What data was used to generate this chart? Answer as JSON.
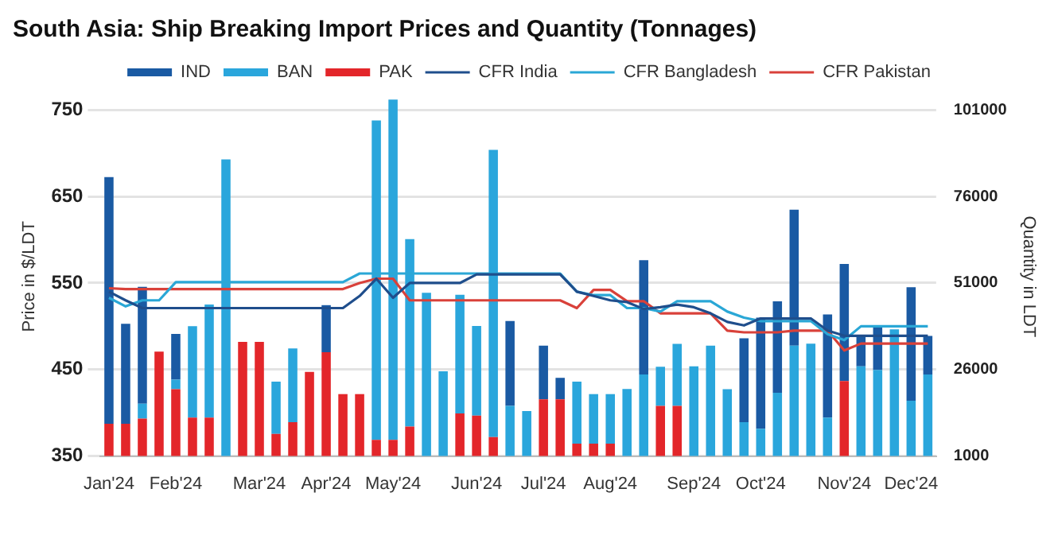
{
  "chart_data": {
    "type": "bar",
    "title": "South Asia: Ship Breaking Import Prices and Quantity (Tonnages)",
    "categories": [
      "Jan'24",
      null,
      null,
      null,
      "Feb'24",
      null,
      null,
      null,
      null,
      "Mar'24",
      null,
      null,
      null,
      "Apr'24",
      null,
      null,
      null,
      "May'24",
      null,
      null,
      null,
      null,
      "Jun'24",
      null,
      null,
      null,
      "Jul'24",
      null,
      null,
      null,
      "Aug'24",
      null,
      null,
      null,
      null,
      "Sep'24",
      null,
      null,
      null,
      "Oct'24",
      null,
      null,
      null,
      null,
      "Nov'24",
      null,
      null,
      null,
      "Dec'24",
      null
    ],
    "series": [
      {
        "name": "PAK",
        "color": "#e3262a",
        "axis": "y2",
        "values": [
          10300,
          10300,
          11800,
          31200,
          20300,
          12100,
          12100,
          null,
          34000,
          34000,
          7400,
          10800,
          25300,
          31000,
          18900,
          18900,
          5700,
          5700,
          9500,
          null,
          null,
          13300,
          12700,
          6500,
          null,
          null,
          17400,
          17400,
          4600,
          4600,
          4600,
          null,
          null,
          15500,
          15500,
          null,
          null,
          null,
          null,
          null,
          null,
          null,
          null,
          null,
          22700,
          null,
          null,
          null,
          null,
          null
        ]
      },
      {
        "name": "BAN",
        "color": "#2aa6dc",
        "axis": "y2",
        "values": [
          null,
          null,
          4300,
          null,
          2800,
          26400,
          32700,
          86700,
          null,
          null,
          15100,
          21300,
          null,
          null,
          null,
          null,
          92300,
          98300,
          54200,
          48200,
          25500,
          34300,
          25900,
          83000,
          15500,
          14000,
          null,
          null,
          17900,
          14300,
          14300,
          20400,
          24600,
          11300,
          17900,
          26900,
          32900,
          20300,
          10800,
          8900,
          19300,
          32900,
          33500,
          12100,
          null,
          26900,
          25900,
          37600,
          17000,
          24600
        ]
      },
      {
        "name": "IND",
        "color": "#1a5aa3",
        "axis": "y2",
        "values": [
          71300,
          28900,
          33800,
          null,
          13200,
          null,
          null,
          null,
          null,
          null,
          null,
          null,
          null,
          13600,
          null,
          null,
          null,
          null,
          null,
          null,
          null,
          null,
          null,
          null,
          24500,
          null,
          15500,
          6200,
          null,
          null,
          null,
          null,
          33000,
          null,
          null,
          null,
          null,
          null,
          24200,
          32100,
          26400,
          39300,
          null,
          29800,
          33800,
          8900,
          12300,
          null,
          32800,
          11100
        ]
      },
      {
        "name": "CFR India",
        "type": "line",
        "color": "#1f4e8c",
        "axis": "y",
        "values": [
          540,
          530,
          521,
          521,
          521,
          521,
          521,
          521,
          521,
          521,
          521,
          521,
          521,
          521,
          521,
          535,
          555,
          533,
          550,
          550,
          550,
          550,
          560,
          560,
          560,
          560,
          560,
          560,
          540,
          535,
          530,
          528,
          520,
          522,
          525,
          522,
          515,
          505,
          501,
          509,
          509,
          509,
          509,
          495,
          489,
          489,
          489,
          489,
          489,
          489
        ]
      },
      {
        "name": "CFR Bangladesh",
        "type": "line",
        "color": "#2aa7d6",
        "axis": "y",
        "values": [
          533,
          523,
          530,
          530,
          551,
          551,
          551,
          551,
          551,
          551,
          551,
          551,
          551,
          551,
          551,
          561,
          561,
          561,
          561,
          561,
          561,
          561,
          561,
          561,
          561,
          561,
          561,
          561,
          540,
          536,
          536,
          521,
          521,
          517,
          529,
          529,
          529,
          517,
          510,
          506,
          506,
          506,
          506,
          491,
          484,
          500,
          500,
          500,
          500,
          500
        ]
      },
      {
        "name": "CFR Pakistan",
        "type": "line",
        "color": "#d9413a",
        "axis": "y",
        "values": [
          544,
          543,
          543,
          543,
          543,
          543,
          543,
          543,
          543,
          543,
          543,
          543,
          543,
          543,
          543,
          550,
          555,
          555,
          530,
          530,
          530,
          530,
          530,
          530,
          530,
          530,
          530,
          530,
          521,
          542,
          542,
          529,
          529,
          515,
          515,
          515,
          515,
          495,
          493,
          493,
          493,
          495,
          495,
          495,
          472,
          480,
          480,
          480,
          480,
          480
        ]
      }
    ],
    "stacked": true,
    "marker": "none",
    "ylabel": "Price in $/LDT",
    "y2label": "Quantity in LDT",
    "ylim": [
      350,
      765
    ],
    "yticks": [
      350,
      450,
      550,
      650,
      750
    ],
    "y2lim": [
      1000,
      104750
    ],
    "y2ticks": [
      1000,
      26000,
      51000,
      76000,
      101000
    ],
    "grid": "y",
    "legend": "top"
  }
}
